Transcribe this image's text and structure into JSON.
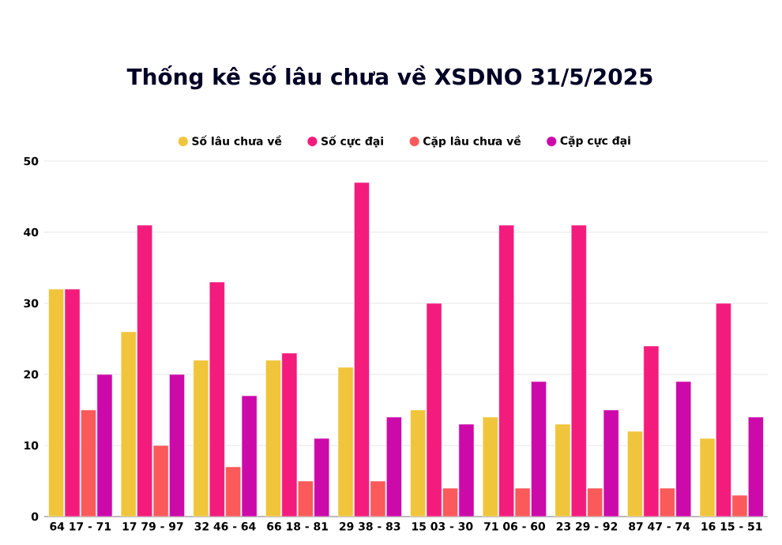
{
  "chart_data": {
    "type": "bar",
    "title": "Thống kê số lâu chưa về XSDNO 31/5/2025",
    "categories": [
      "64 17 - 71",
      "17 79 - 97",
      "32 46 - 64",
      "66 18 - 81",
      "29 38 - 83",
      "15 03 - 30",
      "71 06 - 60",
      "23 29 - 92",
      "87 47 - 74",
      "16 15 - 51"
    ],
    "series": [
      {
        "name": "Số lâu chưa về",
        "color": "#f0c53c",
        "values": [
          32,
          26,
          22,
          22,
          21,
          15,
          14,
          13,
          12,
          11
        ]
      },
      {
        "name": "Số cực đại",
        "color": "#f31c7c",
        "values": [
          32,
          41,
          33,
          23,
          47,
          30,
          41,
          41,
          24,
          30
        ]
      },
      {
        "name": "Cặp lâu chưa về",
        "color": "#fa5a5a",
        "values": [
          15,
          10,
          7,
          5,
          5,
          4,
          4,
          4,
          4,
          3
        ]
      },
      {
        "name": "Cặp cực đại",
        "color": "#cc0aa9",
        "values": [
          20,
          20,
          17,
          11,
          14,
          13,
          19,
          15,
          19,
          14
        ]
      }
    ],
    "ylim": [
      0,
      50
    ],
    "yticks": [
      0,
      10,
      20,
      30,
      40,
      50
    ],
    "grid": "y",
    "legend": "top"
  }
}
